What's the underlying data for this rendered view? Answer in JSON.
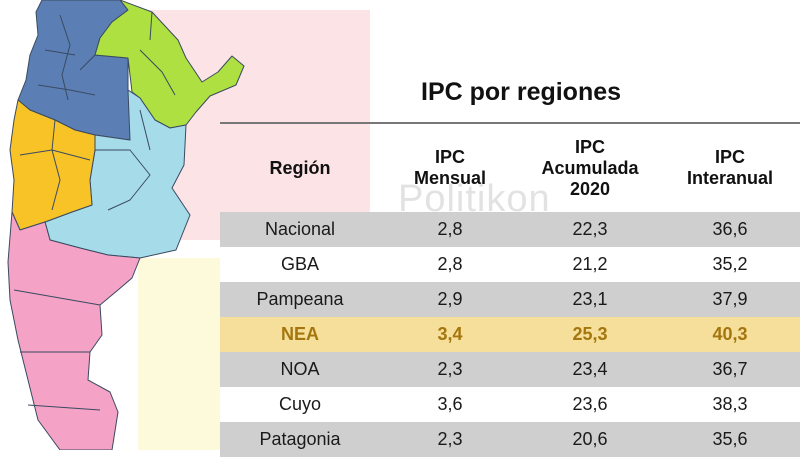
{
  "colors": {
    "region_blue": "#5b7fb5",
    "region_green": "#ade040",
    "region_lightblue": "#a6dbe9",
    "region_orange": "#f7c327",
    "region_pink": "#f4a3c6",
    "row_gray": "#cfcfcf",
    "row_white": "#ffffff",
    "row_highlight": "#f6df9a",
    "highlight_text": "#a4760e"
  },
  "watermark": "Politikon",
  "chart_data": {
    "type": "table",
    "title": "IPC por regiones",
    "columns": [
      [
        "Región"
      ],
      [
        "IPC",
        "Mensual"
      ],
      [
        "IPC",
        "Acumulada",
        "2020"
      ],
      [
        "IPC",
        "Interanual"
      ]
    ],
    "rows": [
      {
        "region": "Nacional",
        "mensual": "2,8",
        "acumulada": "22,3",
        "interanual": "36,6",
        "shade": "gray"
      },
      {
        "region": "GBA",
        "mensual": "2,8",
        "acumulada": "21,2",
        "interanual": "35,2",
        "shade": "white"
      },
      {
        "region": "Pampeana",
        "mensual": "2,9",
        "acumulada": "23,1",
        "interanual": "37,9",
        "shade": "gray"
      },
      {
        "region": "NEA",
        "mensual": "3,4",
        "acumulada": "25,3",
        "interanual": "40,3",
        "shade": "highlight"
      },
      {
        "region": "NOA",
        "mensual": "2,3",
        "acumulada": "23,4",
        "interanual": "36,7",
        "shade": "gray"
      },
      {
        "region": "Cuyo",
        "mensual": "3,6",
        "acumulada": "23,6",
        "interanual": "38,3",
        "shade": "white"
      },
      {
        "region": "Patagonia",
        "mensual": "2,3",
        "acumulada": "20,6",
        "interanual": "35,6",
        "shade": "gray"
      }
    ]
  }
}
